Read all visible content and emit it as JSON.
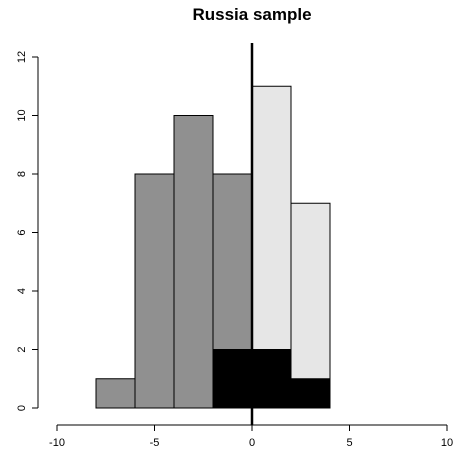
{
  "chart_data": {
    "type": "bar",
    "title": "Russia sample",
    "xlabel": "",
    "ylabel": "",
    "xlim": [
      -10,
      10
    ],
    "ylim": [
      0,
      12
    ],
    "x_ticks": [
      -10,
      -5,
      0,
      5,
      10
    ],
    "y_ticks": [
      0,
      2,
      4,
      6,
      8,
      10,
      12
    ],
    "reference_line_x": 0,
    "grid": false,
    "series": [
      {
        "color": "#909090",
        "bins": [
          {
            "x0": -8,
            "x1": -6,
            "value": 1
          },
          {
            "x0": -6,
            "x1": -4,
            "value": 8
          },
          {
            "x0": -4,
            "x1": -2,
            "value": 10
          },
          {
            "x0": -2,
            "x1": 0,
            "value": 8
          }
        ]
      },
      {
        "color": "#e6e6e6",
        "bins": [
          {
            "x0": 0,
            "x1": 2,
            "value": 11
          },
          {
            "x0": 2,
            "x1": 4,
            "value": 7
          }
        ]
      },
      {
        "color": "#000000",
        "bins": [
          {
            "x0": -2,
            "x1": 0,
            "value": 2
          },
          {
            "x0": 0,
            "x1": 2,
            "value": 2
          },
          {
            "x0": 2,
            "x1": 4,
            "value": 1
          }
        ]
      }
    ]
  }
}
